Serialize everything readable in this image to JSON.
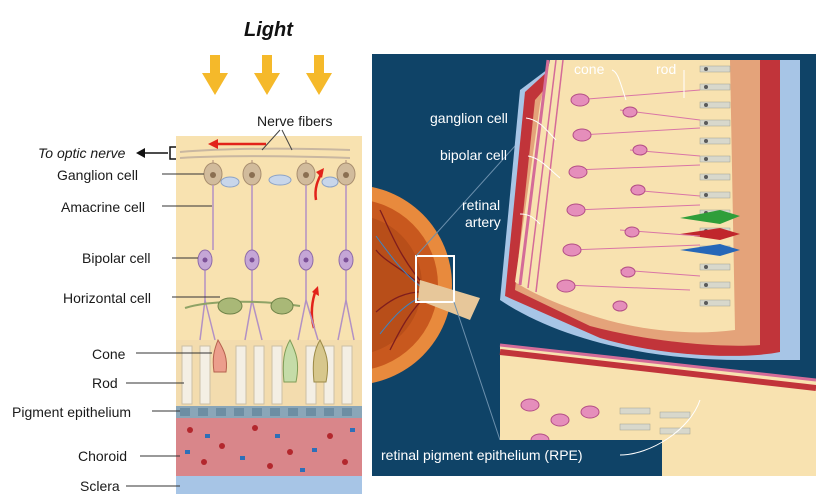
{
  "left": {
    "title": "Light",
    "nerve_fibers": "Nerve fibers",
    "to_optic_nerve": "To optic nerve",
    "labels": [
      "Ganglion cell",
      "Amacrine cell",
      "Bipolar cell",
      "Horizontal cell",
      "Cone",
      "Rod",
      "Pigment epithelium",
      "Choroid",
      "Sclera"
    ]
  },
  "right": {
    "labels": {
      "cone": "cone",
      "rod": "rod",
      "ganglion": "ganglion cell",
      "bipolar": "bipolar cell",
      "retinal_artery_1": "retinal",
      "retinal_artery_2": "artery",
      "rpe": "retinal pigment epithelium (RPE)"
    }
  },
  "colors": {
    "light_arrow": "#f5b92a",
    "retina_bg": "#f8e2b0",
    "choroid": "#d9868a",
    "sclera": "#a7c5e6",
    "panel_bg": "#0f4367",
    "red_arrow": "#e2231a"
  }
}
